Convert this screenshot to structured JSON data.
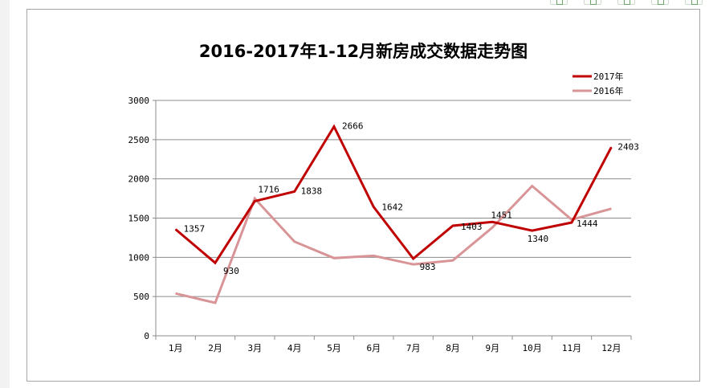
{
  "toolbar": {
    "icons": [
      "copy-icon",
      "share-icon",
      "table-icon",
      "save-icon",
      "more-icon"
    ]
  },
  "chart_data": {
    "type": "line",
    "title": "2016-2017年1-12月新房成交数据走势图",
    "xlabel": "",
    "ylabel": "",
    "categories": [
      "1月",
      "2月",
      "3月",
      "4月",
      "5月",
      "6月",
      "7月",
      "8月",
      "9月",
      "10月",
      "11月",
      "12月"
    ],
    "ylim": [
      0,
      3000
    ],
    "yticks": [
      0,
      500,
      1000,
      1500,
      2000,
      2500,
      3000
    ],
    "grid": true,
    "legend_position": "top-right",
    "series": [
      {
        "name": "2017年",
        "color": "#c00000",
        "values": [
          1357,
          930,
          1716,
          1838,
          2666,
          1642,
          983,
          1403,
          1451,
          1340,
          1444,
          2403
        ],
        "labels": [
          "1357",
          "930",
          "1716",
          "1838",
          "2666",
          "1642",
          "983",
          "1403",
          "1451",
          "1340",
          "1444",
          "2403"
        ]
      },
      {
        "name": "2016年",
        "color": "#d89496",
        "values": [
          540,
          420,
          1750,
          1200,
          990,
          1020,
          910,
          960,
          1380,
          1910,
          1480,
          1620
        ]
      }
    ]
  }
}
